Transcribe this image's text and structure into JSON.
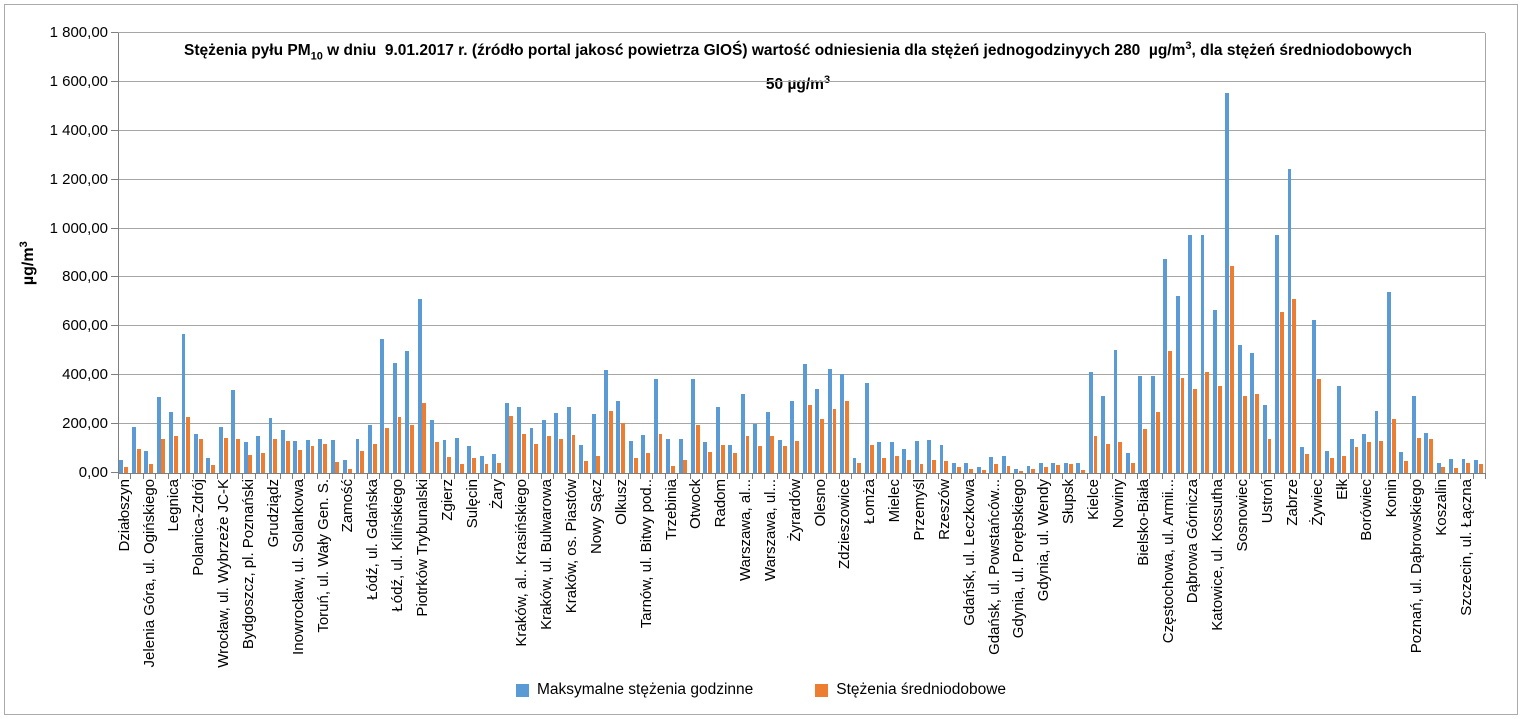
{
  "window": {
    "background": "#ffffff",
    "frame_color": "#ababab"
  },
  "title": {
    "segments": [
      {
        "t": "Stężenia pyłu PM"
      },
      {
        "t": "10",
        "style": "sub"
      },
      {
        "t": " w dniu  9.01.2017 r. (źródło portal jakosć powietrza GIOŚ) wartość odniesienia dla stężeń jednogodzinyych 280  µg/m"
      },
      {
        "t": "3",
        "style": "sup"
      },
      {
        "t": ", dla stężeń średniodobowych 50 µg/m"
      },
      {
        "t": "3",
        "style": "sup"
      }
    ]
  },
  "y_axis": {
    "label_segments": [
      {
        "t": "µg/m"
      },
      {
        "t": "3",
        "style": "sup"
      }
    ],
    "min": 0,
    "max": 1800,
    "step": 200,
    "tick_labels": [
      "0,00",
      "200,00",
      "400,00",
      "600,00",
      "800,00",
      "1 000,00",
      "1 200,00",
      "1 400,00",
      "1 600,00",
      "1 800,00"
    ]
  },
  "legend": {
    "items": [
      {
        "label": "Maksymalne stężenia godzinne",
        "color": "#5B9BD5"
      },
      {
        "label": "Stężenia średniodobowe",
        "color": "#ED7D31"
      }
    ]
  },
  "chart_data": {
    "type": "bar",
    "ylim": [
      0,
      1800
    ],
    "grid": "horizontal-major",
    "legend_position": "bottom-center",
    "series": [
      {
        "name": "Maksymalne stężenia godzinne",
        "color": "#5B9BD5",
        "key": "max"
      },
      {
        "name": "Stężenia średniodobowe",
        "color": "#ED7D31",
        "key": "avg"
      }
    ],
    "note": "110 station slots; only every second slot carries a visible axis label (empty label = unlabeled slot). Values in µg/m3 estimated from gridlines.",
    "stations": [
      {
        "label": "Działoszyn",
        "max": 55,
        "avg": 25
      },
      {
        "label": "",
        "max": 190,
        "avg": 100
      },
      {
        "label": "Jelenia Góra, ul. Ogińskiego",
        "max": 90,
        "avg": 38
      },
      {
        "label": "",
        "max": 310,
        "avg": 140
      },
      {
        "label": "Legnica",
        "max": 250,
        "avg": 150
      },
      {
        "label": "",
        "max": 570,
        "avg": 230
      },
      {
        "label": "Polanica-Zdrój",
        "max": 160,
        "avg": 140
      },
      {
        "label": "",
        "max": 60,
        "avg": 33
      },
      {
        "label": "Wrocław, ul. Wybrzeże JC-K",
        "max": 190,
        "avg": 145
      },
      {
        "label": "",
        "max": 340,
        "avg": 140
      },
      {
        "label": "Bydgoszcz, pl. Poznański",
        "max": 125,
        "avg": 75
      },
      {
        "label": "",
        "max": 150,
        "avg": 80
      },
      {
        "label": "Grudziądz",
        "max": 225,
        "avg": 140
      },
      {
        "label": "",
        "max": 175,
        "avg": 130
      },
      {
        "label": "Inowrocław, ul. Solankowa",
        "max": 130,
        "avg": 95
      },
      {
        "label": "",
        "max": 135,
        "avg": 110
      },
      {
        "label": "Toruń, ul. Wały Gen. S.",
        "max": 140,
        "avg": 120
      },
      {
        "label": "",
        "max": 135,
        "avg": 45
      },
      {
        "label": "Zamość",
        "max": 55,
        "avg": 16
      },
      {
        "label": "",
        "max": 140,
        "avg": 90
      },
      {
        "label": "Łódź, ul. Gdańska",
        "max": 195,
        "avg": 120
      },
      {
        "label": "",
        "max": 550,
        "avg": 185
      },
      {
        "label": "Łódź, ul. Kilińskiego",
        "max": 450,
        "avg": 230
      },
      {
        "label": "",
        "max": 500,
        "avg": 195
      },
      {
        "label": "Piotrków Trybunalski",
        "max": 710,
        "avg": 285
      },
      {
        "label": "",
        "max": 215,
        "avg": 125
      },
      {
        "label": "Zgierz",
        "max": 135,
        "avg": 65
      },
      {
        "label": "",
        "max": 145,
        "avg": 35
      },
      {
        "label": "Sulęcin",
        "max": 110,
        "avg": 60
      },
      {
        "label": "",
        "max": 70,
        "avg": 37
      },
      {
        "label": "Żary",
        "max": 78,
        "avg": 42
      },
      {
        "label": "",
        "max": 285,
        "avg": 235
      },
      {
        "label": "Kraków, al.. Krasińskiego",
        "max": 270,
        "avg": 160
      },
      {
        "label": "",
        "max": 185,
        "avg": 120
      },
      {
        "label": "Kraków, ul. Bulwarowa",
        "max": 215,
        "avg": 150
      },
      {
        "label": "",
        "max": 245,
        "avg": 140
      },
      {
        "label": "Kraków, os. Piastów",
        "max": 270,
        "avg": 155
      },
      {
        "label": "",
        "max": 115,
        "avg": 50
      },
      {
        "label": "Nowy Sącz",
        "max": 240,
        "avg": 70
      },
      {
        "label": "",
        "max": 420,
        "avg": 255
      },
      {
        "label": "Olkusz",
        "max": 295,
        "avg": 205
      },
      {
        "label": "",
        "max": 130,
        "avg": 60
      },
      {
        "label": "Tarnów, ul. Bitwy pod..",
        "max": 155,
        "avg": 80
      },
      {
        "label": "",
        "max": 385,
        "avg": 160
      },
      {
        "label": "Trzebinia",
        "max": 140,
        "avg": 30
      },
      {
        "label": "",
        "max": 140,
        "avg": 55
      },
      {
        "label": "Otwock",
        "max": 385,
        "avg": 195
      },
      {
        "label": "",
        "max": 125,
        "avg": 85
      },
      {
        "label": "Radom",
        "max": 270,
        "avg": 115
      },
      {
        "label": "",
        "max": 115,
        "avg": 80
      },
      {
        "label": "Warszawa, al...",
        "max": 325,
        "avg": 150
      },
      {
        "label": "",
        "max": 200,
        "avg": 110
      },
      {
        "label": "Warszawa, ul...",
        "max": 250,
        "avg": 150
      },
      {
        "label": "",
        "max": 135,
        "avg": 110
      },
      {
        "label": "Żyrardów",
        "max": 295,
        "avg": 130
      },
      {
        "label": "",
        "max": 445,
        "avg": 280
      },
      {
        "label": "Olesno",
        "max": 345,
        "avg": 220
      },
      {
        "label": "",
        "max": 425,
        "avg": 260
      },
      {
        "label": "Zdzieszowice",
        "max": 405,
        "avg": 295
      },
      {
        "label": "",
        "max": 63,
        "avg": 42
      },
      {
        "label": "Łomża",
        "max": 370,
        "avg": 115
      },
      {
        "label": "",
        "max": 125,
        "avg": 60
      },
      {
        "label": "Mielec",
        "max": 125,
        "avg": 70
      },
      {
        "label": "",
        "max": 100,
        "avg": 55
      },
      {
        "label": "Przemyśl",
        "max": 130,
        "avg": 35
      },
      {
        "label": "",
        "max": 135,
        "avg": 55
      },
      {
        "label": "Rzeszów",
        "max": 115,
        "avg": 50
      },
      {
        "label": "",
        "max": 40,
        "avg": 23
      },
      {
        "label": "Gdańsk, ul. Leczkowa",
        "max": 42,
        "avg": 15
      },
      {
        "label": "",
        "max": 23,
        "avg": 12
      },
      {
        "label": "Gdańsk, ul. Powstańców...",
        "max": 64,
        "avg": 37
      },
      {
        "label": "",
        "max": 70,
        "avg": 29
      },
      {
        "label": "Gdynia, ul. Porębskiego",
        "max": 15,
        "avg": 7
      },
      {
        "label": "",
        "max": 29,
        "avg": 18
      },
      {
        "label": "Gdynia, ul. Wendy",
        "max": 42,
        "avg": 23
      },
      {
        "label": "",
        "max": 42,
        "avg": 34
      },
      {
        "label": "Słupsk",
        "max": 42,
        "avg": 37
      },
      {
        "label": "",
        "max": 42,
        "avg": 12
      },
      {
        "label": "Kielce",
        "max": 415,
        "avg": 150
      },
      {
        "label": "",
        "max": 315,
        "avg": 117
      },
      {
        "label": "Nowiny",
        "max": 505,
        "avg": 128
      },
      {
        "label": "",
        "max": 83,
        "avg": 40
      },
      {
        "label": "Bielsko-Biała",
        "max": 395,
        "avg": 180
      },
      {
        "label": "",
        "max": 395,
        "avg": 250
      },
      {
        "label": "Częstochowa, ul. Armii...",
        "max": 875,
        "avg": 500
      },
      {
        "label": "",
        "max": 725,
        "avg": 390
      },
      {
        "label": "Dąbrowa Górnicza",
        "max": 975,
        "avg": 345
      },
      {
        "label": "",
        "max": 975,
        "avg": 415
      },
      {
        "label": "Katowice, ul. Kossutha",
        "max": 665,
        "avg": 355
      },
      {
        "label": "",
        "max": 1555,
        "avg": 845
      },
      {
        "label": "Sosnowiec",
        "max": 525,
        "avg": 315
      },
      {
        "label": "",
        "max": 490,
        "avg": 325
      },
      {
        "label": "Ustroń",
        "max": 280,
        "avg": 140
      },
      {
        "label": "",
        "max": 975,
        "avg": 660
      },
      {
        "label": "Zabrze",
        "max": 1245,
        "avg": 710
      },
      {
        "label": "",
        "max": 105,
        "avg": 77
      },
      {
        "label": "Żywiec",
        "max": 625,
        "avg": 385
      },
      {
        "label": "",
        "max": 90,
        "avg": 60
      },
      {
        "label": "Ełk",
        "max": 355,
        "avg": 70
      },
      {
        "label": "",
        "max": 140,
        "avg": 105
      },
      {
        "label": "Borówiec",
        "max": 160,
        "avg": 125
      },
      {
        "label": "",
        "max": 255,
        "avg": 130
      },
      {
        "label": "Konin",
        "max": 740,
        "avg": 220
      },
      {
        "label": "",
        "max": 87,
        "avg": 49
      },
      {
        "label": "Poznań, ul. Dąbrowskiego",
        "max": 315,
        "avg": 142
      },
      {
        "label": "",
        "max": 165,
        "avg": 138
      },
      {
        "label": "Koszalin",
        "max": 42,
        "avg": 26
      },
      {
        "label": "",
        "max": 56,
        "avg": 20
      },
      {
        "label": "Szczecin, ul. Łączna",
        "max": 56,
        "avg": 42
      },
      {
        "label": "",
        "max": 53,
        "avg": 37
      }
    ]
  }
}
